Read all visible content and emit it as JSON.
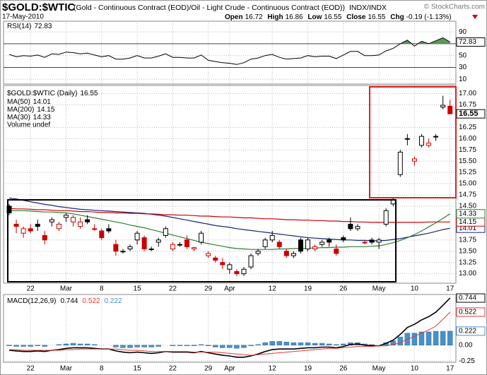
{
  "header": {
    "symbol": "$GOLD:$WTIC",
    "description": "(Gold - Continuous Contract (EOD)/Oil - Light Crude - Continuous Contract (EOD))",
    "exchange": "INDX/INDX",
    "copyright": "© StockCharts.com",
    "date": "17-May-2010",
    "quote_labels": [
      "Open",
      "High",
      "Low",
      "Close",
      "Chg"
    ],
    "chg": "-0.19 (-1.13%)"
  },
  "chart_data": [
    {
      "type": "line",
      "title": "RSI(14)",
      "ylim": [
        2,
        108
      ],
      "yticks": [
        90,
        70,
        50,
        30,
        10
      ],
      "overbought": 70,
      "oversold": 30,
      "fill_color": "#5a9a5a",
      "series": [
        {
          "color": "#000000",
          "values": [
            52,
            48,
            50,
            49,
            51,
            47,
            53,
            52,
            56,
            55,
            53,
            54,
            51,
            48,
            50,
            44,
            44,
            46,
            50,
            46,
            46,
            49,
            53,
            47,
            47,
            46,
            46,
            51,
            42,
            40,
            38,
            37,
            35,
            38,
            44,
            46,
            50,
            52,
            47,
            44,
            45,
            46,
            50,
            48,
            49,
            49,
            45,
            51,
            57,
            57,
            50,
            50,
            51,
            58,
            62,
            70,
            76,
            66,
            74,
            70,
            75,
            80,
            72.83
          ]
        }
      ]
    },
    {
      "type": "candlestick",
      "title": "$GOLD:$WTIC (Daily)",
      "volume_label": "Volume undef",
      "up_color": "#000000",
      "down_color": "#cc0000",
      "categories": [
        null,
        null,
        null,
        "22",
        null,
        null,
        null,
        null,
        "Mar",
        null,
        null,
        null,
        null,
        "8",
        null,
        null,
        null,
        null,
        "15",
        null,
        null,
        null,
        null,
        "22",
        null,
        null,
        null,
        null,
        "29",
        null,
        null,
        "Apr",
        null,
        null,
        null,
        null,
        null,
        "12",
        null,
        null,
        null,
        null,
        "19",
        null,
        null,
        null,
        null,
        "26",
        null,
        null,
        null,
        null,
        "May",
        null,
        null,
        null,
        null,
        "10",
        null,
        null,
        null,
        null,
        "17"
      ],
      "open": [
        14.5,
        14.1,
        13.9,
        14.0,
        14.1,
        13.85,
        14.15,
        14.0,
        14.25,
        14.15,
        14.05,
        14.2,
        14.0,
        13.95,
        14.0,
        13.65,
        13.5,
        13.55,
        13.75,
        13.8,
        13.55,
        13.7,
        13.85,
        13.55,
        13.65,
        13.75,
        13.55,
        13.7,
        13.4,
        13.35,
        13.25,
        13.1,
        13.05,
        13.0,
        13.15,
        13.45,
        13.6,
        13.75,
        13.7,
        13.5,
        13.4,
        13.75,
        13.55,
        13.55,
        13.65,
        13.75,
        13.55,
        13.8,
        14.1,
        14.0,
        13.7,
        13.75,
        13.7,
        14.1,
        14.55,
        15.2,
        16.0,
        15.5,
        15.85,
        15.85,
        16.05,
        16.7,
        16.72
      ],
      "high": [
        14.55,
        14.2,
        14.05,
        14.1,
        14.2,
        13.95,
        14.25,
        14.15,
        14.35,
        14.3,
        14.25,
        14.3,
        14.1,
        14.0,
        14.1,
        13.75,
        13.55,
        13.65,
        13.95,
        13.85,
        13.6,
        13.8,
        14.05,
        13.7,
        13.7,
        13.85,
        13.6,
        13.95,
        13.5,
        13.4,
        13.35,
        13.25,
        13.1,
        13.15,
        13.45,
        13.55,
        13.8,
        13.95,
        13.75,
        13.55,
        13.5,
        13.8,
        13.8,
        13.65,
        13.75,
        13.8,
        13.65,
        13.85,
        14.25,
        14.1,
        13.75,
        13.8,
        13.8,
        14.45,
        14.7,
        15.75,
        16.1,
        15.6,
        16.1,
        16.0,
        16.1,
        16.95,
        16.86
      ],
      "low": [
        14.3,
        13.9,
        13.8,
        13.9,
        13.95,
        13.65,
        14.05,
        13.95,
        14.15,
        14.05,
        14.0,
        14.1,
        13.95,
        13.75,
        13.9,
        13.4,
        13.45,
        13.5,
        13.65,
        13.5,
        13.5,
        13.6,
        13.8,
        13.5,
        13.6,
        13.55,
        13.5,
        13.65,
        13.35,
        13.25,
        13.1,
        13.0,
        12.95,
        12.95,
        13.1,
        13.4,
        13.55,
        13.7,
        13.55,
        13.35,
        13.35,
        13.45,
        13.5,
        13.5,
        13.6,
        13.6,
        13.4,
        13.7,
        13.95,
        13.95,
        13.65,
        13.65,
        13.55,
        14.05,
        14.5,
        15.15,
        15.85,
        15.4,
        15.8,
        15.8,
        15.95,
        16.65,
        16.55
      ],
      "close": [
        14.35,
        14.05,
        14.0,
        13.95,
        14.05,
        13.75,
        14.2,
        14.1,
        14.3,
        14.25,
        14.15,
        14.15,
        14.0,
        13.8,
        13.95,
        13.5,
        13.5,
        13.6,
        13.9,
        13.55,
        13.55,
        13.75,
        14.0,
        13.65,
        13.65,
        13.6,
        13.58,
        13.9,
        13.45,
        13.3,
        13.2,
        13.2,
        13.0,
        13.1,
        13.4,
        13.5,
        13.75,
        13.85,
        13.6,
        13.4,
        13.45,
        13.5,
        13.75,
        13.6,
        13.7,
        13.7,
        13.45,
        13.75,
        14.0,
        14.05,
        13.7,
        13.7,
        13.75,
        14.4,
        14.65,
        15.7,
        16.0,
        15.55,
        16.05,
        15.9,
        16.05,
        16.74,
        16.55
      ],
      "series": [
        {
          "name": "MA(50)",
          "color": "#1a237e",
          "values": [
            14.68,
            14.66,
            14.63,
            14.6,
            14.57,
            14.54,
            14.52,
            14.49,
            14.47,
            14.45,
            14.43,
            14.42,
            14.41,
            14.4,
            14.39,
            14.38,
            14.37,
            14.36,
            14.35,
            14.34,
            14.32,
            14.3,
            14.28,
            14.25,
            14.22,
            14.19,
            14.16,
            14.13,
            14.1,
            14.07,
            14.05,
            14.03,
            14.0,
            13.98,
            13.96,
            13.94,
            13.92,
            13.9,
            13.88,
            13.86,
            13.84,
            13.82,
            13.8,
            13.79,
            13.78,
            13.77,
            13.76,
            13.75,
            13.75,
            13.74,
            13.74,
            13.73,
            13.73,
            13.74,
            13.76,
            13.78,
            13.81,
            13.84,
            13.87,
            13.9,
            13.94,
            13.98,
            14.01
          ]
        },
        {
          "name": "MA(200)",
          "color": "#cc0000",
          "values": [
            14.45,
            14.44,
            14.44,
            14.43,
            14.42,
            14.42,
            14.41,
            14.4,
            14.4,
            14.39,
            14.38,
            14.38,
            14.37,
            14.36,
            14.36,
            14.35,
            14.35,
            14.34,
            14.34,
            14.33,
            14.33,
            14.32,
            14.31,
            14.31,
            14.3,
            14.3,
            14.29,
            14.28,
            14.28,
            14.27,
            14.26,
            14.26,
            14.25,
            14.24,
            14.24,
            14.23,
            14.22,
            14.22,
            14.21,
            14.2,
            14.2,
            14.19,
            14.19,
            14.18,
            14.18,
            14.17,
            14.17,
            14.16,
            14.16,
            14.15,
            14.15,
            14.14,
            14.14,
            14.14,
            14.14,
            14.14,
            14.14,
            14.14,
            14.14,
            14.15,
            14.15,
            14.15,
            14.15
          ]
        },
        {
          "name": "MA(30)",
          "color": "#2e7d32",
          "values": [
            14.4,
            14.4,
            14.4,
            14.39,
            14.38,
            14.37,
            14.37,
            14.36,
            14.35,
            14.33,
            14.3,
            14.27,
            14.24,
            14.21,
            14.18,
            14.15,
            14.12,
            14.08,
            14.05,
            14.02,
            13.98,
            13.94,
            13.9,
            13.86,
            13.82,
            13.78,
            13.74,
            13.7,
            13.67,
            13.64,
            13.61,
            13.58,
            13.56,
            13.55,
            13.54,
            13.54,
            13.54,
            13.54,
            13.55,
            13.55,
            13.56,
            13.56,
            13.57,
            13.57,
            13.58,
            13.58,
            13.59,
            13.59,
            13.6,
            13.6,
            13.6,
            13.61,
            13.62,
            13.65,
            13.69,
            13.74,
            13.8,
            13.87,
            13.95,
            14.04,
            14.13,
            14.23,
            14.33
          ]
        }
      ],
      "ylim": [
        12.79,
        17.18
      ],
      "yticks": [
        {
          "value": 17,
          "label": "17.00"
        },
        16.75,
        16.25,
        {
          "value": 16,
          "label": "16.00"
        },
        15.75,
        {
          "value": 15.5,
          "label": "15.50"
        },
        15.25,
        {
          "value": 15,
          "label": "15.00"
        },
        14.75,
        {
          "value": 14.5,
          "label": "14.50"
        },
        13.75,
        {
          "value": 13.5,
          "label": "13.50"
        },
        13.25,
        {
          "value": 13,
          "label": "13.00"
        }
      ]
    },
    {
      "type": "macd",
      "title": "MACD(12,26,9)",
      "categories": [
        null,
        null,
        null,
        "22",
        null,
        null,
        null,
        null,
        "Mar",
        null,
        null,
        null,
        null,
        "8",
        null,
        null,
        null,
        null,
        "15",
        null,
        null,
        null,
        null,
        "22",
        null,
        null,
        null,
        null,
        "29",
        null,
        null,
        "Apr",
        null,
        null,
        null,
        null,
        null,
        "12",
        null,
        null,
        null,
        null,
        "19",
        null,
        null,
        null,
        null,
        "26",
        null,
        null,
        null,
        null,
        "May",
        null,
        null,
        null,
        null,
        "10",
        null,
        null,
        null,
        null,
        "17"
      ],
      "series": [
        {
          "color": "#000000",
          "values": [
            -0.08,
            -0.09,
            -0.1,
            -0.1,
            -0.09,
            -0.1,
            -0.08,
            -0.07,
            -0.05,
            -0.04,
            -0.04,
            -0.04,
            -0.05,
            -0.06,
            -0.06,
            -0.09,
            -0.11,
            -0.12,
            -0.11,
            -0.12,
            -0.13,
            -0.12,
            -0.1,
            -0.11,
            -0.11,
            -0.11,
            -0.12,
            -0.1,
            -0.12,
            -0.14,
            -0.16,
            -0.17,
            -0.19,
            -0.19,
            -0.17,
            -0.14,
            -0.1,
            -0.07,
            -0.06,
            -0.06,
            -0.06,
            -0.05,
            -0.04,
            -0.04,
            -0.03,
            -0.03,
            -0.04,
            -0.02,
            0.01,
            0.02,
            0.0,
            -0.01,
            -0.01,
            0.03,
            0.08,
            0.17,
            0.28,
            0.33,
            0.4,
            0.45,
            0.52,
            0.63,
            0.744
          ]
        },
        {
          "color": "#e53935",
          "values": [
            -0.07,
            -0.07,
            -0.08,
            -0.08,
            -0.08,
            -0.08,
            -0.08,
            -0.08,
            -0.07,
            -0.07,
            -0.06,
            -0.06,
            -0.06,
            -0.06,
            -0.06,
            -0.06,
            -0.07,
            -0.08,
            -0.08,
            -0.09,
            -0.1,
            -0.1,
            -0.1,
            -0.1,
            -0.1,
            -0.1,
            -0.11,
            -0.11,
            -0.11,
            -0.11,
            -0.12,
            -0.13,
            -0.14,
            -0.15,
            -0.16,
            -0.15,
            -0.14,
            -0.13,
            -0.12,
            -0.11,
            -0.1,
            -0.09,
            -0.08,
            -0.07,
            -0.06,
            -0.05,
            -0.05,
            -0.04,
            -0.03,
            -0.02,
            -0.02,
            -0.02,
            -0.01,
            -0.01,
            0.01,
            0.04,
            0.09,
            0.14,
            0.19,
            0.24,
            0.3,
            0.41,
            0.522
          ]
        },
        {
          "color": "#4a90c8",
          "kind": "bar",
          "values": [
            -0.01,
            -0.02,
            -0.02,
            -0.02,
            -0.01,
            -0.02,
            0.0,
            0.01,
            0.02,
            0.03,
            0.02,
            0.02,
            0.01,
            0.0,
            0.0,
            -0.03,
            -0.04,
            -0.04,
            -0.03,
            -0.03,
            -0.03,
            -0.02,
            0.0,
            -0.01,
            -0.01,
            -0.01,
            -0.01,
            0.01,
            -0.01,
            -0.03,
            -0.04,
            -0.04,
            -0.05,
            -0.04,
            -0.01,
            0.01,
            0.04,
            0.06,
            0.06,
            0.05,
            0.04,
            0.04,
            0.04,
            0.03,
            0.03,
            0.02,
            0.01,
            0.02,
            0.04,
            0.04,
            0.02,
            0.01,
            0.0,
            0.04,
            0.07,
            0.13,
            0.19,
            0.19,
            0.21,
            0.21,
            0.22,
            0.22,
            0.222
          ]
        }
      ],
      "ylim": [
        -0.27,
        0.8
      ],
      "yticks": [
        {
          "value": 0,
          "label": "0.00"
        },
        -0.25
      ]
    }
  ]
}
